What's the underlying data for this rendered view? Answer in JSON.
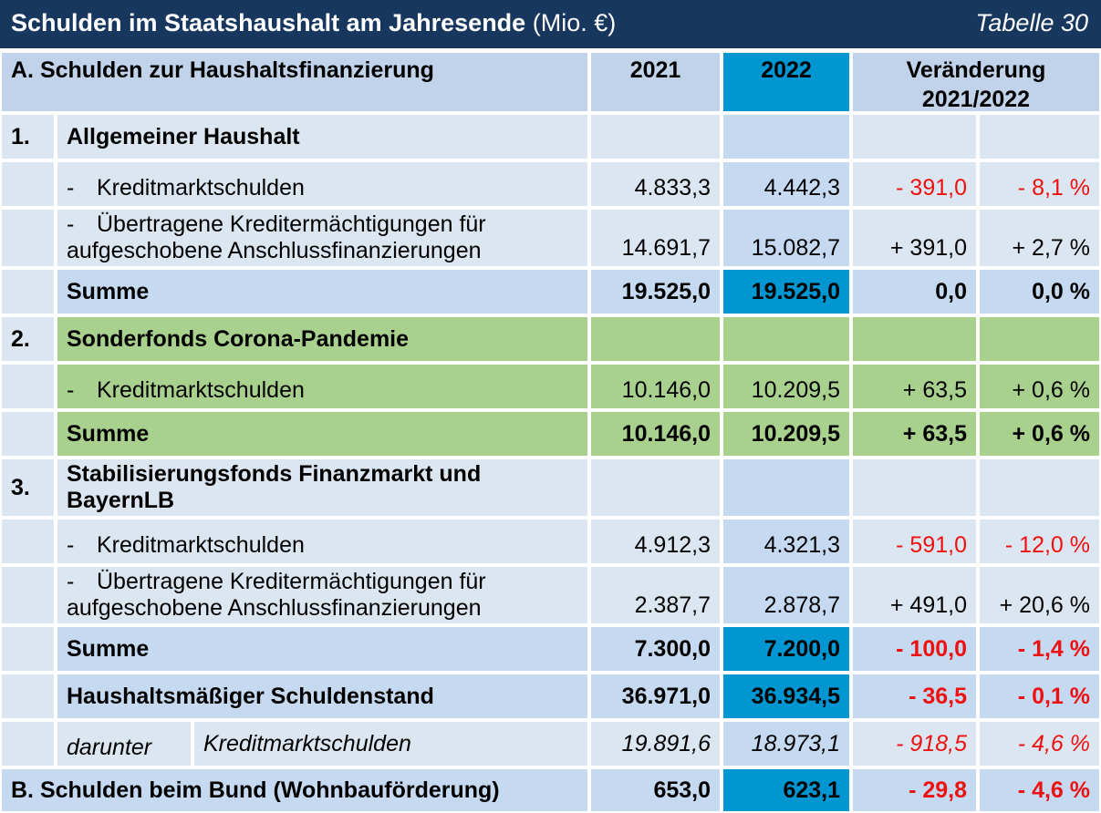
{
  "title": {
    "main": "Schulden im Staatshaushalt am Jahresende",
    "unit": "(Mio. €)",
    "table": "Tabelle 30"
  },
  "header": {
    "section_a": "A. Schulden zur Haushaltsfinanzierung",
    "col_2021": "2021",
    "col_2022": "2022",
    "change_line1": "Veränderung",
    "change_line2": "2021/2022"
  },
  "s1": {
    "num": "1.",
    "title": "Allgemeiner Haushalt",
    "r1": {
      "dash": "-",
      "label": "Kreditmarktschulden",
      "v2021": "4.833,3",
      "v2022": "4.442,3",
      "abs": "- 391,0",
      "pct": "- 8,1 %"
    },
    "r2": {
      "dash": "-",
      "label1": "Übertragene Kreditermächtigungen für",
      "label2": "aufgeschobene Anschlussfinanzierungen",
      "v2021": "14.691,7",
      "v2022": "15.082,7",
      "abs": "+ 391,0",
      "pct": "+ 2,7 %"
    },
    "sum": {
      "label": "Summe",
      "v2021": "19.525,0",
      "v2022": "19.525,0",
      "abs": "0,0",
      "pct": "0,0 %"
    }
  },
  "s2": {
    "num": "2.",
    "title": "Sonderfonds Corona-Pandemie",
    "r1": {
      "dash": "-",
      "label": "Kreditmarktschulden",
      "v2021": "10.146,0",
      "v2022": "10.209,5",
      "abs": "+ 63,5",
      "pct": "+ 0,6 %"
    },
    "sum": {
      "label": "Summe",
      "v2021": "10.146,0",
      "v2022": "10.209,5",
      "abs": "+ 63,5",
      "pct": "+ 0,6 %"
    }
  },
  "s3": {
    "num": "3.",
    "title1": "Stabilisierungsfonds Finanzmarkt und",
    "title2": "BayernLB",
    "r1": {
      "dash": "-",
      "label": "Kreditmarktschulden",
      "v2021": "4.912,3",
      "v2022": "4.321,3",
      "abs": "- 591,0",
      "pct": "- 12,0 %"
    },
    "r2": {
      "dash": "-",
      "label1": "Übertragene Kreditermächtigungen für",
      "label2": "aufgeschobene Anschlussfinanzierungen",
      "v2021": "2.387,7",
      "v2022": "2.878,7",
      "abs": "+ 491,0",
      "pct": "+ 20,6 %"
    },
    "sum": {
      "label": "Summe",
      "v2021": "7.300,0",
      "v2022": "7.200,0",
      "abs": "- 100,0",
      "pct": "- 1,4 %"
    }
  },
  "total": {
    "label": "Haushaltsmäßiger Schuldenstand",
    "v2021": "36.971,0",
    "v2022": "36.934,5",
    "abs": "- 36,5",
    "pct": "- 0,1 %"
  },
  "darunter": {
    "label": "darunter",
    "sub": "Kreditmarktschulden",
    "v2021": "19.891,6",
    "v2022": "18.973,1",
    "abs": "- 918,5",
    "pct": "- 4,6 %"
  },
  "section_b": {
    "label": "B. Schulden beim Bund (Wohnbauförderung)",
    "v2021": "653,0",
    "v2022": "623,1",
    "abs": "- 29,8",
    "pct": "- 4,6 %"
  },
  "colors": {
    "title_bg": "#17375e",
    "highlight_2022": "#0096d2",
    "green": "#a9d18e",
    "light_blue": "#dce6f1",
    "mid_blue": "#c5d9f1",
    "negative": "#ee1111"
  }
}
